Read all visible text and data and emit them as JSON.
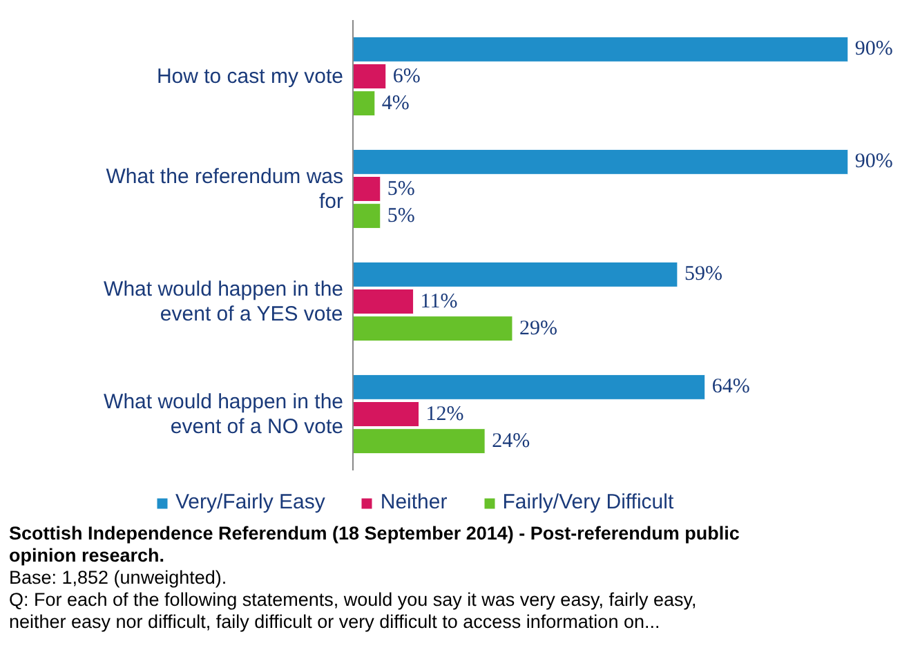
{
  "chart_data": {
    "type": "bar",
    "orientation": "horizontal",
    "categories": [
      "How to cast my vote",
      "What the referendum was for",
      "What would happen in the event of a YES vote",
      "What would happen in the event of a NO vote"
    ],
    "series": [
      {
        "name": "Very/Fairly Easy",
        "color": "#1f8ec9",
        "values": [
          90,
          90,
          59,
          64
        ],
        "value_labels": [
          "90%",
          "90%",
          "59%",
          "64%"
        ]
      },
      {
        "name": "Neither",
        "color": "#d5165e",
        "values": [
          6,
          5,
          11,
          12
        ],
        "value_labels": [
          "6%",
          "5%",
          "11%",
          "12%"
        ]
      },
      {
        "name": "Fairly/Very Difficult",
        "color": "#67c12a",
        "values": [
          4,
          5,
          29,
          24
        ],
        "value_labels": [
          "4%",
          "5%",
          "29%",
          "24%"
        ]
      }
    ],
    "legend": "bottom",
    "annotations": [
      "Scottish Independence Referendum (18 September 2014) - Post-referendum public opinion research.",
      "Base: 1,852 (unweighted).",
      "Q: For each of the following statements, would you say it was very easy, fairly easy, neither easy nor difficult, faily difficult or very difficult to access information on..."
    ]
  }
}
